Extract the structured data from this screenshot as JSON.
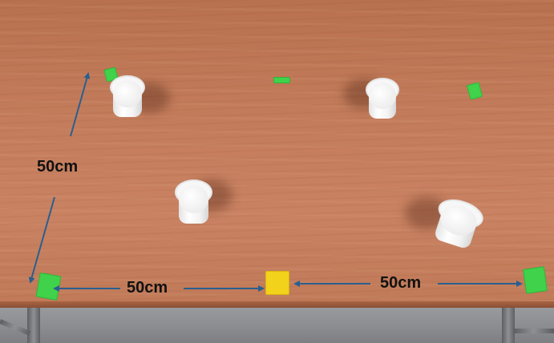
{
  "scene": {
    "description_labels": {
      "left_distance": "50cm",
      "bottom_left_distance": "50cm",
      "bottom_right_distance": "50cm"
    },
    "colors": {
      "table": "#c47d5c",
      "tape_green": "#3fd24a",
      "tape_yellow": "#f2d21a",
      "arrow": "#2a5f8f"
    }
  }
}
